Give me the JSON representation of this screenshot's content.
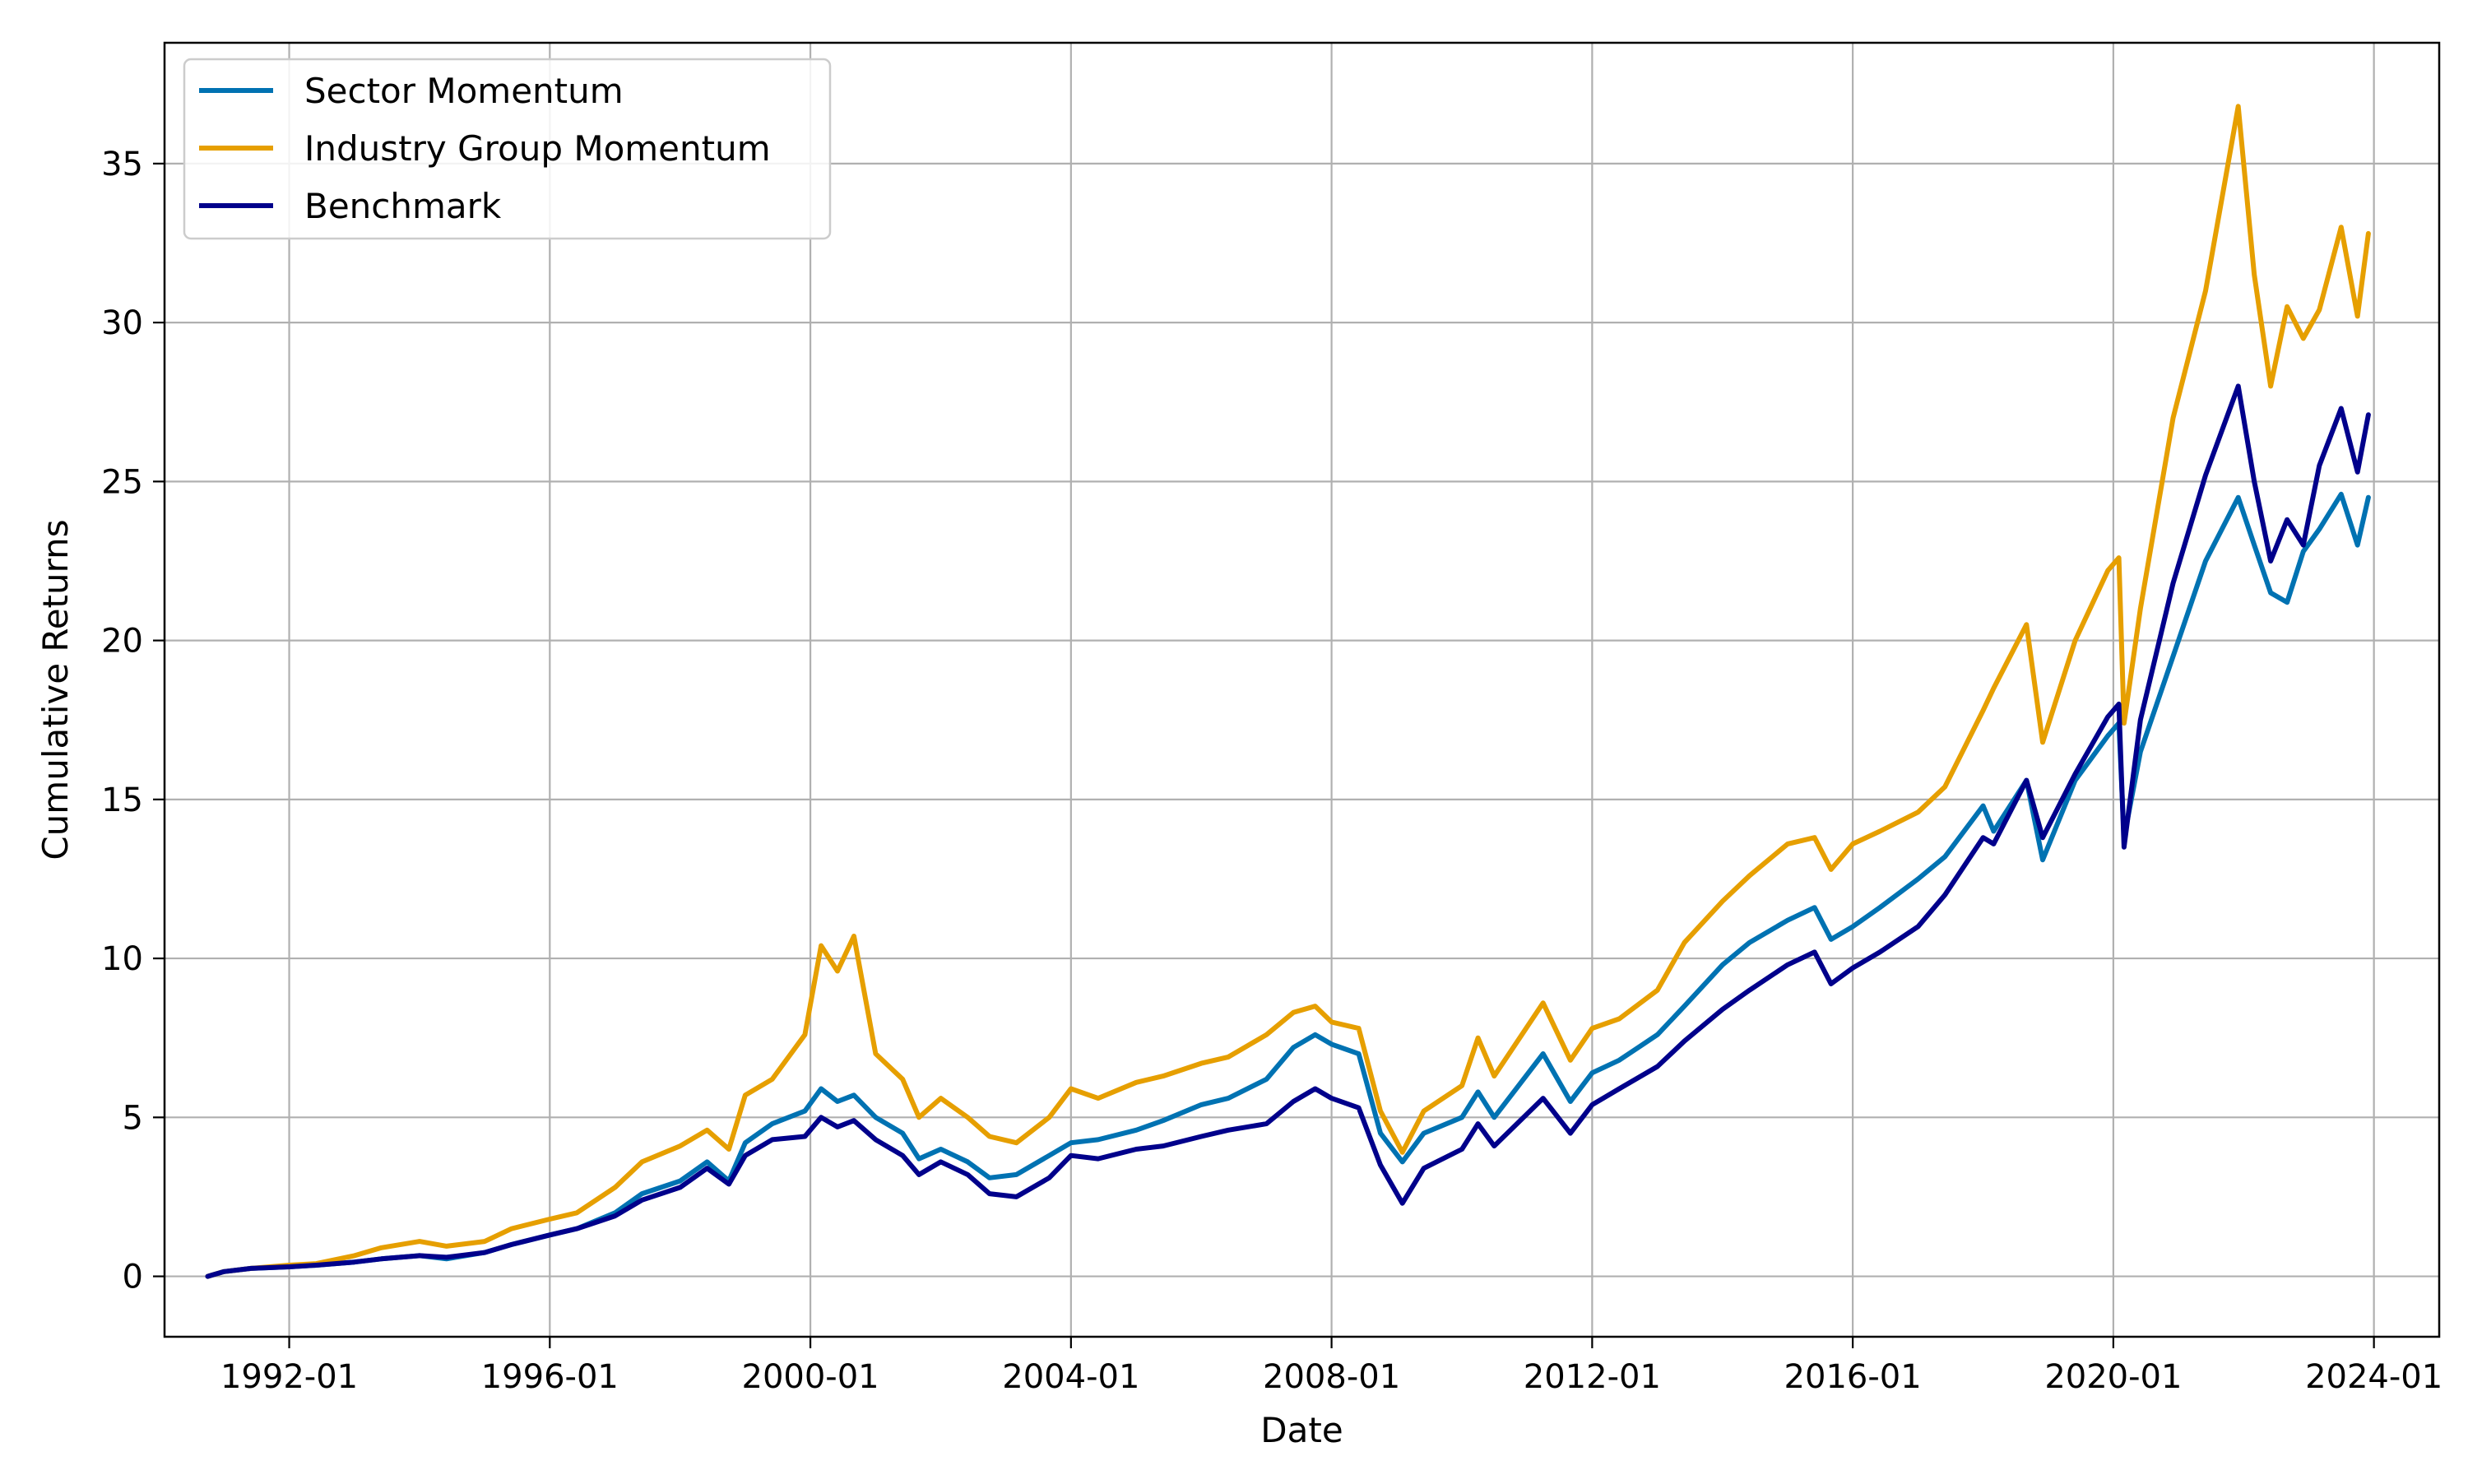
{
  "chart_data": {
    "type": "line",
    "title": "",
    "xlabel": "Date",
    "ylabel": "Cumulative Returns",
    "xlim": [
      "1990-02-01",
      "2025-01-01"
    ],
    "ylim": [
      -1.9,
      38.8
    ],
    "grid": true,
    "legend_position": "top-left",
    "x_ticks": [
      "1992-01-01",
      "1996-01-01",
      "2000-01-01",
      "2004-01-01",
      "2008-01-01",
      "2012-01-01",
      "2016-01-01",
      "2020-01-01",
      "2024-01-01"
    ],
    "x_tick_labels": [
      "1992-01",
      "1996-01",
      "2000-01",
      "2004-01",
      "2008-01",
      "2012-01",
      "2016-01",
      "2020-01",
      "2024-01"
    ],
    "y_ticks": [
      0,
      5,
      10,
      15,
      20,
      25,
      30,
      35
    ],
    "y_tick_labels": [
      "0",
      "5",
      "10",
      "15",
      "20",
      "25",
      "30",
      "35"
    ],
    "series": [
      {
        "name": "Sector Momentum",
        "color": "#0072B2",
        "points": [
          [
            "1990-10-01",
            0.0
          ],
          [
            "1991-01-01",
            0.15
          ],
          [
            "1991-06-01",
            0.25
          ],
          [
            "1992-01-01",
            0.3
          ],
          [
            "1992-06-01",
            0.35
          ],
          [
            "1993-01-01",
            0.45
          ],
          [
            "1993-06-01",
            0.55
          ],
          [
            "1994-01-01",
            0.65
          ],
          [
            "1994-06-01",
            0.55
          ],
          [
            "1995-01-01",
            0.75
          ],
          [
            "1995-06-01",
            1.0
          ],
          [
            "1996-01-01",
            1.3
          ],
          [
            "1996-06-01",
            1.5
          ],
          [
            "1997-01-01",
            2.0
          ],
          [
            "1997-06-01",
            2.6
          ],
          [
            "1998-01-01",
            3.0
          ],
          [
            "1998-06-01",
            3.6
          ],
          [
            "1998-10-01",
            3.0
          ],
          [
            "1999-01-01",
            4.2
          ],
          [
            "1999-06-01",
            4.8
          ],
          [
            "1999-12-01",
            5.2
          ],
          [
            "2000-03-01",
            5.9
          ],
          [
            "2000-06-01",
            5.5
          ],
          [
            "2000-09-01",
            5.7
          ],
          [
            "2001-01-01",
            5.0
          ],
          [
            "2001-06-01",
            4.5
          ],
          [
            "2001-09-01",
            3.7
          ],
          [
            "2002-01-01",
            4.0
          ],
          [
            "2002-06-01",
            3.6
          ],
          [
            "2002-10-01",
            3.1
          ],
          [
            "2003-03-01",
            3.2
          ],
          [
            "2003-09-01",
            3.8
          ],
          [
            "2004-01-01",
            4.2
          ],
          [
            "2004-06-01",
            4.3
          ],
          [
            "2005-01-01",
            4.6
          ],
          [
            "2005-06-01",
            4.9
          ],
          [
            "2006-01-01",
            5.4
          ],
          [
            "2006-06-01",
            5.6
          ],
          [
            "2007-01-01",
            6.2
          ],
          [
            "2007-06-01",
            7.2
          ],
          [
            "2007-10-01",
            7.6
          ],
          [
            "2008-01-01",
            7.3
          ],
          [
            "2008-06-01",
            7.0
          ],
          [
            "2008-10-01",
            4.5
          ],
          [
            "2009-02-01",
            3.6
          ],
          [
            "2009-06-01",
            4.5
          ],
          [
            "2010-01-01",
            5.0
          ],
          [
            "2010-04-01",
            5.8
          ],
          [
            "2010-07-01",
            5.0
          ],
          [
            "2011-04-01",
            7.0
          ],
          [
            "2011-09-01",
            5.5
          ],
          [
            "2012-01-01",
            6.4
          ],
          [
            "2012-06-01",
            6.8
          ],
          [
            "2013-01-01",
            7.6
          ],
          [
            "2013-06-01",
            8.5
          ],
          [
            "2014-01-01",
            9.8
          ],
          [
            "2014-06-01",
            10.5
          ],
          [
            "2015-01-01",
            11.2
          ],
          [
            "2015-06-01",
            11.6
          ],
          [
            "2015-09-01",
            10.6
          ],
          [
            "2016-01-01",
            11.0
          ],
          [
            "2016-06-01",
            11.6
          ],
          [
            "2017-01-01",
            12.5
          ],
          [
            "2017-06-01",
            13.2
          ],
          [
            "2018-01-01",
            14.8
          ],
          [
            "2018-03-01",
            14.0
          ],
          [
            "2018-09-01",
            15.6
          ],
          [
            "2018-12-01",
            13.1
          ],
          [
            "2019-06-01",
            15.6
          ],
          [
            "2019-12-01",
            17.0
          ],
          [
            "2020-02-01",
            17.4
          ],
          [
            "2020-03-01",
            13.8
          ],
          [
            "2020-06-01",
            16.5
          ],
          [
            "2020-12-01",
            19.5
          ],
          [
            "2021-06-01",
            22.5
          ],
          [
            "2021-12-01",
            24.5
          ],
          [
            "2022-03-01",
            23.0
          ],
          [
            "2022-06-01",
            21.5
          ],
          [
            "2022-09-01",
            21.2
          ],
          [
            "2022-12-01",
            22.8
          ],
          [
            "2023-03-01",
            23.5
          ],
          [
            "2023-07-01",
            24.6
          ],
          [
            "2023-10-01",
            23.0
          ],
          [
            "2023-12-01",
            24.5
          ]
        ]
      },
      {
        "name": "Industry Group Momentum",
        "color": "#E69F00",
        "points": [
          [
            "1990-10-01",
            0.0
          ],
          [
            "1991-01-01",
            0.15
          ],
          [
            "1991-06-01",
            0.25
          ],
          [
            "1992-01-01",
            0.35
          ],
          [
            "1992-06-01",
            0.4
          ],
          [
            "1993-01-01",
            0.65
          ],
          [
            "1993-06-01",
            0.9
          ],
          [
            "1994-01-01",
            1.1
          ],
          [
            "1994-06-01",
            0.95
          ],
          [
            "1995-01-01",
            1.1
          ],
          [
            "1995-06-01",
            1.5
          ],
          [
            "1996-01-01",
            1.8
          ],
          [
            "1996-06-01",
            2.0
          ],
          [
            "1997-01-01",
            2.8
          ],
          [
            "1997-06-01",
            3.6
          ],
          [
            "1998-01-01",
            4.1
          ],
          [
            "1998-06-01",
            4.6
          ],
          [
            "1998-10-01",
            4.0
          ],
          [
            "1999-01-01",
            5.7
          ],
          [
            "1999-06-01",
            6.2
          ],
          [
            "1999-12-01",
            7.6
          ],
          [
            "2000-03-01",
            10.4
          ],
          [
            "2000-06-01",
            9.6
          ],
          [
            "2000-09-01",
            10.7
          ],
          [
            "2001-01-01",
            7.0
          ],
          [
            "2001-06-01",
            6.2
          ],
          [
            "2001-09-01",
            5.0
          ],
          [
            "2002-01-01",
            5.6
          ],
          [
            "2002-06-01",
            5.0
          ],
          [
            "2002-10-01",
            4.4
          ],
          [
            "2003-03-01",
            4.2
          ],
          [
            "2003-09-01",
            5.0
          ],
          [
            "2004-01-01",
            5.9
          ],
          [
            "2004-06-01",
            5.6
          ],
          [
            "2005-01-01",
            6.1
          ],
          [
            "2005-06-01",
            6.3
          ],
          [
            "2006-01-01",
            6.7
          ],
          [
            "2006-06-01",
            6.9
          ],
          [
            "2007-01-01",
            7.6
          ],
          [
            "2007-06-01",
            8.3
          ],
          [
            "2007-10-01",
            8.5
          ],
          [
            "2008-01-01",
            8.0
          ],
          [
            "2008-06-01",
            7.8
          ],
          [
            "2008-10-01",
            5.2
          ],
          [
            "2009-02-01",
            3.9
          ],
          [
            "2009-06-01",
            5.2
          ],
          [
            "2010-01-01",
            6.0
          ],
          [
            "2010-04-01",
            7.5
          ],
          [
            "2010-07-01",
            6.3
          ],
          [
            "2011-04-01",
            8.6
          ],
          [
            "2011-09-01",
            6.8
          ],
          [
            "2012-01-01",
            7.8
          ],
          [
            "2012-06-01",
            8.1
          ],
          [
            "2013-01-01",
            9.0
          ],
          [
            "2013-06-01",
            10.5
          ],
          [
            "2014-01-01",
            11.8
          ],
          [
            "2014-06-01",
            12.6
          ],
          [
            "2015-01-01",
            13.6
          ],
          [
            "2015-06-01",
            13.8
          ],
          [
            "2015-09-01",
            12.8
          ],
          [
            "2016-01-01",
            13.6
          ],
          [
            "2016-06-01",
            14.0
          ],
          [
            "2017-01-01",
            14.6
          ],
          [
            "2017-06-01",
            15.4
          ],
          [
            "2018-01-01",
            17.8
          ],
          [
            "2018-03-01",
            18.5
          ],
          [
            "2018-09-01",
            20.5
          ],
          [
            "2018-12-01",
            16.8
          ],
          [
            "2019-06-01",
            20.0
          ],
          [
            "2019-12-01",
            22.2
          ],
          [
            "2020-02-01",
            22.6
          ],
          [
            "2020-03-01",
            17.4
          ],
          [
            "2020-06-01",
            21.0
          ],
          [
            "2020-12-01",
            27.0
          ],
          [
            "2021-06-01",
            31.0
          ],
          [
            "2021-12-01",
            36.8
          ],
          [
            "2022-03-01",
            31.5
          ],
          [
            "2022-06-01",
            28.0
          ],
          [
            "2022-09-01",
            30.5
          ],
          [
            "2022-12-01",
            29.5
          ],
          [
            "2023-03-01",
            30.4
          ],
          [
            "2023-07-01",
            33.0
          ],
          [
            "2023-10-01",
            30.2
          ],
          [
            "2023-12-01",
            32.8
          ]
        ]
      },
      {
        "name": "Benchmark",
        "color": "#00008B",
        "points": [
          [
            "1990-10-01",
            0.0
          ],
          [
            "1991-01-01",
            0.15
          ],
          [
            "1991-06-01",
            0.25
          ],
          [
            "1992-01-01",
            0.3
          ],
          [
            "1992-06-01",
            0.35
          ],
          [
            "1993-01-01",
            0.45
          ],
          [
            "1993-06-01",
            0.55
          ],
          [
            "1994-01-01",
            0.65
          ],
          [
            "1994-06-01",
            0.6
          ],
          [
            "1995-01-01",
            0.75
          ],
          [
            "1995-06-01",
            1.0
          ],
          [
            "1996-01-01",
            1.3
          ],
          [
            "1996-06-01",
            1.5
          ],
          [
            "1997-01-01",
            1.9
          ],
          [
            "1997-06-01",
            2.4
          ],
          [
            "1998-01-01",
            2.8
          ],
          [
            "1998-06-01",
            3.4
          ],
          [
            "1998-10-01",
            2.9
          ],
          [
            "1999-01-01",
            3.8
          ],
          [
            "1999-06-01",
            4.3
          ],
          [
            "1999-12-01",
            4.4
          ],
          [
            "2000-03-01",
            5.0
          ],
          [
            "2000-06-01",
            4.7
          ],
          [
            "2000-09-01",
            4.9
          ],
          [
            "2001-01-01",
            4.3
          ],
          [
            "2001-06-01",
            3.8
          ],
          [
            "2001-09-01",
            3.2
          ],
          [
            "2002-01-01",
            3.6
          ],
          [
            "2002-06-01",
            3.2
          ],
          [
            "2002-10-01",
            2.6
          ],
          [
            "2003-03-01",
            2.5
          ],
          [
            "2003-09-01",
            3.1
          ],
          [
            "2004-01-01",
            3.8
          ],
          [
            "2004-06-01",
            3.7
          ],
          [
            "2005-01-01",
            4.0
          ],
          [
            "2005-06-01",
            4.1
          ],
          [
            "2006-01-01",
            4.4
          ],
          [
            "2006-06-01",
            4.6
          ],
          [
            "2007-01-01",
            4.8
          ],
          [
            "2007-06-01",
            5.5
          ],
          [
            "2007-10-01",
            5.9
          ],
          [
            "2008-01-01",
            5.6
          ],
          [
            "2008-06-01",
            5.3
          ],
          [
            "2008-10-01",
            3.5
          ],
          [
            "2009-02-01",
            2.3
          ],
          [
            "2009-06-01",
            3.4
          ],
          [
            "2010-01-01",
            4.0
          ],
          [
            "2010-04-01",
            4.8
          ],
          [
            "2010-07-01",
            4.1
          ],
          [
            "2011-04-01",
            5.6
          ],
          [
            "2011-09-01",
            4.5
          ],
          [
            "2012-01-01",
            5.4
          ],
          [
            "2012-06-01",
            5.9
          ],
          [
            "2013-01-01",
            6.6
          ],
          [
            "2013-06-01",
            7.4
          ],
          [
            "2014-01-01",
            8.4
          ],
          [
            "2014-06-01",
            9.0
          ],
          [
            "2015-01-01",
            9.8
          ],
          [
            "2015-06-01",
            10.2
          ],
          [
            "2015-09-01",
            9.2
          ],
          [
            "2016-01-01",
            9.7
          ],
          [
            "2016-06-01",
            10.2
          ],
          [
            "2017-01-01",
            11.0
          ],
          [
            "2017-06-01",
            12.0
          ],
          [
            "2018-01-01",
            13.8
          ],
          [
            "2018-03-01",
            13.6
          ],
          [
            "2018-09-01",
            15.6
          ],
          [
            "2018-12-01",
            13.8
          ],
          [
            "2019-06-01",
            15.8
          ],
          [
            "2019-12-01",
            17.6
          ],
          [
            "2020-02-01",
            18.0
          ],
          [
            "2020-03-01",
            13.5
          ],
          [
            "2020-06-01",
            17.5
          ],
          [
            "2020-12-01",
            21.8
          ],
          [
            "2021-06-01",
            25.2
          ],
          [
            "2021-12-01",
            28.0
          ],
          [
            "2022-03-01",
            25.0
          ],
          [
            "2022-06-01",
            22.5
          ],
          [
            "2022-09-01",
            23.8
          ],
          [
            "2022-12-01",
            23.0
          ],
          [
            "2023-03-01",
            25.5
          ],
          [
            "2023-07-01",
            27.3
          ],
          [
            "2023-10-01",
            25.3
          ],
          [
            "2023-12-01",
            27.1
          ]
        ]
      }
    ]
  }
}
